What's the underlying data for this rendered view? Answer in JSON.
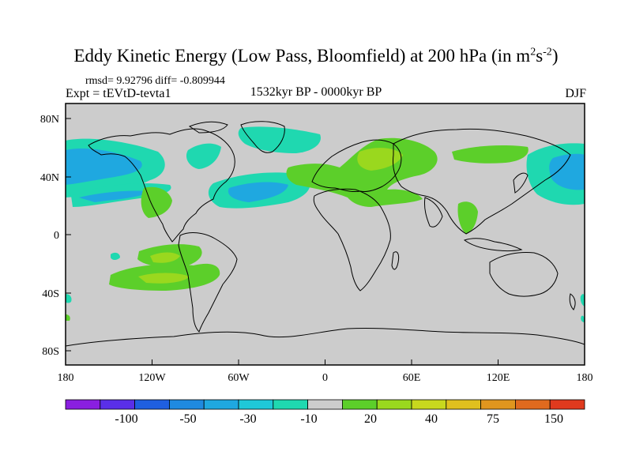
{
  "title": {
    "main": "Eddy Kinetic Energy (Low Pass, Bloomfield) at 200 hPa (in m",
    "sup1": "2",
    "mid": "s",
    "sup2": "-2",
    "close": ")"
  },
  "stats": "rmsd= 9.92796 diff= -0.809944",
  "left_subtitle": "Expt = tEVtD-tevta1",
  "center_subtitle": "1532kyr BP - 0000kyr BP",
  "right_subtitle": "DJF",
  "y_ticks": [
    "80N",
    "40N",
    "0",
    "40S",
    "80S"
  ],
  "x_ticks": [
    "180",
    "120W",
    "60W",
    "0",
    "60E",
    "120E",
    "180"
  ],
  "colorbar": {
    "colors": [
      "#8a1fe0",
      "#5a2fe8",
      "#1f5fe0",
      "#1f8ae0",
      "#1fa8e0",
      "#1fc8d8",
      "#1fd8b0",
      "#cccccc",
      "#5ccf2a",
      "#9ad81e",
      "#c8d81e",
      "#e0c01e",
      "#e0961e",
      "#e06a1e",
      "#e03a1e"
    ],
    "labels": [
      "-100",
      "-50",
      "-30",
      "-10",
      "20",
      "40",
      "75",
      "150"
    ]
  },
  "map": {
    "background": "#cccccc",
    "colors": {
      "cyan": "#1fd8b0",
      "blue": "#1fa8e0",
      "green": "#5ccf2a",
      "yellowgreen": "#9ad81e"
    }
  }
}
